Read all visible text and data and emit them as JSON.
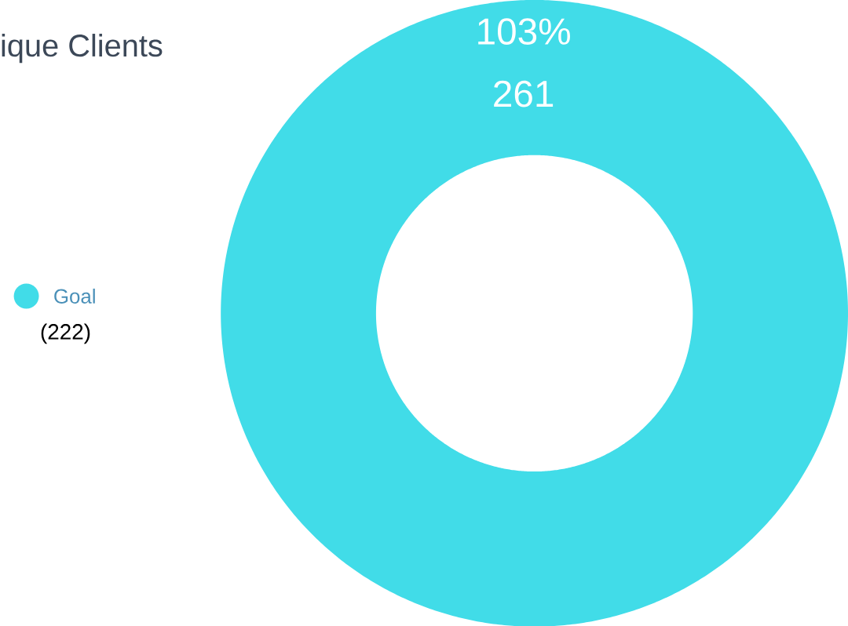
{
  "chart_data": {
    "type": "donut",
    "title": "ique Clients",
    "categories": [
      "Goal"
    ],
    "values": [
      261
    ],
    "colors": [
      "#41dce8"
    ],
    "data_labels": true,
    "legend": "left",
    "annotations": [
      {
        "text": "103%",
        "x": "Goal"
      },
      "(222)"
    ]
  }
}
